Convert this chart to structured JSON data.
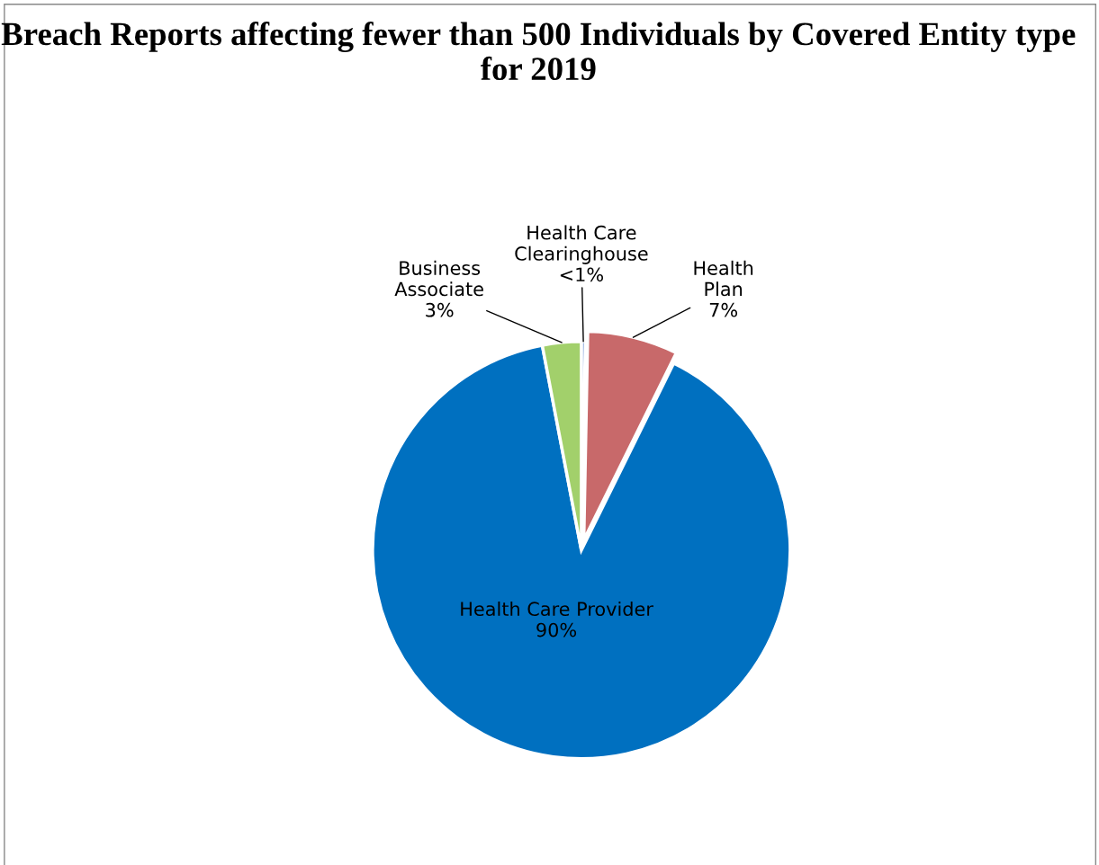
{
  "chart_data": {
    "type": "pie",
    "title": "Breach Reports affecting fewer than 500 Individuals by Covered Entity type for 2019",
    "categories": [
      "Health Care\nClearinghouse",
      "Health\nPlan",
      "Health Care Provider",
      "Business\nAssociate"
    ],
    "values": [
      0.3,
      7,
      89.7,
      3
    ],
    "value_labels": [
      "<1%",
      "7%",
      "90%",
      "3%"
    ],
    "colors": [
      "#4472c4",
      "#c8696a",
      "#0070c0",
      "#a2d06b"
    ]
  }
}
